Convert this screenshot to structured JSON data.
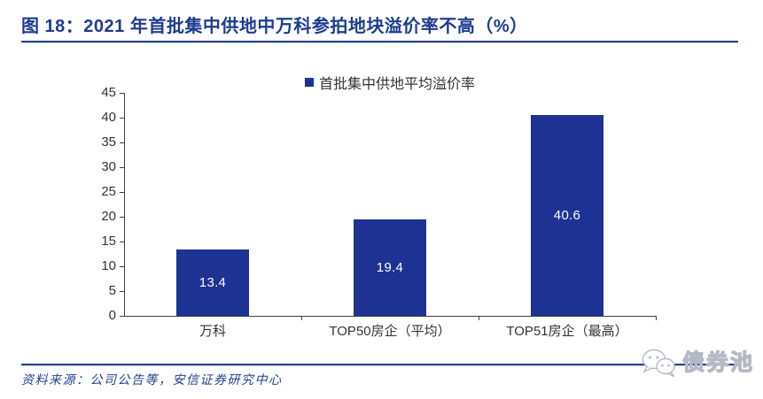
{
  "figure": {
    "title": "图 18：2021 年首批集中供地中万科参拍地块溢价率不高（%）",
    "source": "资料来源：公司公告等，安信证券研究中心"
  },
  "watermark": {
    "text": "债券池",
    "icon": "wechat-icon"
  },
  "colors": {
    "bar": "#1d3292",
    "title_blue": "#1c3c8e",
    "separator_blue": "#2b3f92",
    "axis": "#404040",
    "text": "#333333",
    "bar_value_label": "#ffffff",
    "source_text": "#23418f",
    "watermark_gray": "#b5b9c4"
  },
  "chart_data": {
    "type": "bar",
    "legend": "首批集中供地平均溢价率",
    "legend_position": "top-center",
    "categories": [
      "万科",
      "TOP50房企（平均）",
      "TOP51房企（最高）"
    ],
    "values": [
      13.4,
      19.4,
      40.6
    ],
    "value_labels": [
      "13.4",
      "19.4",
      "40.6"
    ],
    "ylim": [
      0,
      45
    ],
    "yticks": [
      0,
      5,
      10,
      15,
      20,
      25,
      30,
      35,
      40,
      45
    ],
    "grid": false,
    "title": "2021 年首批集中供地中万科参拍地块溢价率不高（%）",
    "xlabel": "",
    "ylabel": ""
  }
}
